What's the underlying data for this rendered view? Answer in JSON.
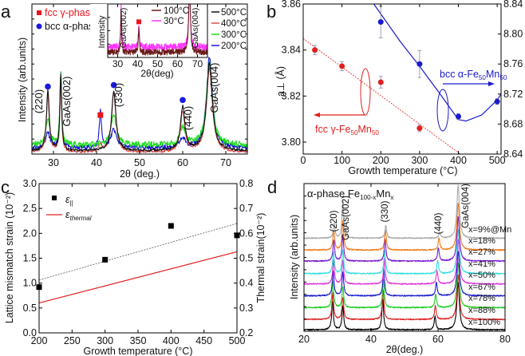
{
  "chart_data": [
    {
      "panel_label": "a",
      "type": "line",
      "xlabel": "2θ (deg.)",
      "ylabel": "Intensity (arb.units)",
      "xlim": [
        25,
        75
      ],
      "ylim": [
        0,
        1
      ],
      "xticks": [
        "30",
        "40",
        "50",
        "60",
        "70"
      ],
      "phase_legend": [
        {
          "label": "fcc γ-phase",
          "color": "#e8141c",
          "marker": "square"
        },
        {
          "label": "bcc α-phase",
          "color": "#1a1adf",
          "marker": "circle"
        }
      ],
      "series": [
        {
          "name": "500°C",
          "color": "#111111",
          "background": 0.02,
          "noise": 0.008,
          "peaks": [
            [
              28.7,
              0.4,
              0.4
            ],
            [
              31.7,
              0.5,
              0.25
            ],
            [
              44.0,
              0.4,
              0.6
            ],
            [
              60.0,
              0.29,
              0.6
            ],
            [
              66.2,
              0.58,
              0.8
            ]
          ]
        },
        {
          "name": "400°C",
          "color": "#dd5050",
          "background": 0.01,
          "noise": 0.008,
          "peaks": [
            [
              28.7,
              0.38,
              0.4
            ],
            [
              31.7,
              0.48,
              0.25
            ],
            [
              40.9,
              0.05,
              0.4
            ],
            [
              44.0,
              0.4,
              0.6
            ],
            [
              60.0,
              0.27,
              0.6
            ],
            [
              66.2,
              0.56,
              0.8
            ]
          ]
        },
        {
          "name": "300°C",
          "color": "#22dd22",
          "background": 0.06,
          "noise": 0.02,
          "peaks": [
            [
              28.7,
              0.17,
              0.5
            ],
            [
              31.7,
              0.48,
              0.25
            ],
            [
              44.0,
              0.2,
              0.7
            ],
            [
              60.0,
              0.12,
              0.7
            ],
            [
              66.2,
              0.55,
              0.8
            ]
          ]
        },
        {
          "name": "200°C",
          "color": "#1414d0",
          "background": 0.04,
          "noise": 0.015,
          "peaks": [
            [
              28.7,
              0.1,
              0.6
            ],
            [
              31.7,
              0.5,
              0.25
            ],
            [
              40.9,
              0.24,
              0.3
            ],
            [
              44.0,
              0.12,
              0.8
            ],
            [
              60.0,
              0.06,
              0.8
            ],
            [
              66.2,
              0.61,
              0.8
            ]
          ]
        }
      ],
      "phase_markers": [
        {
          "phase": "bcc α-phase",
          "x": 28.7,
          "y": 0.45
        },
        {
          "phase": "bcc α-phase",
          "x": 44.0,
          "y": 0.46
        },
        {
          "phase": "bcc α-phase",
          "x": 60.0,
          "y": 0.36
        },
        {
          "phase": "fcc γ-phase",
          "x": 40.9,
          "y": 0.26
        }
      ],
      "peak_labels": [
        "(220)",
        "GaAs(002)",
        "(330)",
        "(440)",
        "GaAs(004)"
      ],
      "inset": {
        "xlabel": "2θ(deg)",
        "ylabel": "Intensity",
        "xlim": [
          25,
          75
        ],
        "ylim": [
          0,
          1
        ],
        "xticks": [
          "30",
          "40",
          "50",
          "60",
          "70"
        ],
        "series": [
          {
            "name": "100°C",
            "color": "#6b1a1a",
            "background": 0.1,
            "noise": 0.06,
            "peaks": [
              [
                31.7,
                0.85,
                0.25
              ],
              [
                40.6,
                0.45,
                0.3
              ],
              [
                66.0,
                1.3,
                0.5
              ]
            ]
          },
          {
            "name": "30°C",
            "color": "#ff33ff",
            "background": 0.2,
            "noise": 0.07,
            "peaks": [
              [
                31.7,
                0.8,
                0.25
              ],
              [
                40.6,
                0.4,
                0.3
              ],
              [
                66.0,
                1.2,
                0.5
              ]
            ]
          }
        ],
        "fcc_marker": {
          "x": 40.6,
          "y": 0.7
        },
        "peak_labels": [
          "GaAs(002)",
          "GaAs(004)"
        ]
      }
    },
    {
      "panel_label": "b",
      "type": "scatter",
      "xlabel": "Growth temperature (°C)",
      "ylabel": "a⊥ (Å)",
      "xlim": [
        0,
        510
      ],
      "ylim_left": [
        3.7948,
        3.86
      ],
      "ylim_right": [
        8.64,
        8.84
      ],
      "xticks": [
        "0",
        "100",
        "200",
        "300",
        "400",
        "500"
      ],
      "yticks_left": [
        "3.80",
        "3.82",
        "3.84",
        "3.86"
      ],
      "yticks_right": [
        "8.64",
        "8.68",
        "8.72",
        "8.76",
        "8.80",
        "8.84"
      ],
      "fcc": {
        "label_prefix": "fcc γ-Fe",
        "sub1": "50",
        "mid": "Mn",
        "sub2": "50",
        "color": "#e02020",
        "axis": "left",
        "points": [
          [
            30,
            3.84,
            0.002
          ],
          [
            100,
            3.833,
            0.002
          ],
          [
            200,
            3.826,
            0.0025
          ],
          [
            300,
            3.806,
            0.0015
          ]
        ],
        "fit": [
          [
            0,
            3.845
          ],
          [
            405,
            3.7948
          ]
        ]
      },
      "bcc": {
        "label_prefix": "bcc α-Fe",
        "sub1": "50",
        "mid": "Mn",
        "sub2": "50",
        "color": "#1a1acc",
        "axis": "right",
        "points": [
          [
            200,
            8.816,
            0.021
          ],
          [
            300,
            8.76,
            0.018
          ],
          [
            400,
            8.69,
            0.004
          ],
          [
            500,
            8.71,
            0.004
          ]
        ],
        "fit": [
          [
            182,
            8.84
          ],
          [
            250,
            8.79
          ],
          [
            300,
            8.757
          ],
          [
            350,
            8.722
          ],
          [
            400,
            8.686
          ],
          [
            420,
            8.684
          ],
          [
            460,
            8.692
          ],
          [
            500,
            8.712
          ],
          [
            510,
            8.72
          ]
        ]
      }
    },
    {
      "panel_label": "c",
      "type": "scatter",
      "xlabel": "Growth temperature (°C)",
      "ylabel_left": "Lattice mismatch strain (10⁻²)",
      "ylabel_right": "Thermal strain(10⁻²)",
      "xlim": [
        200,
        500
      ],
      "ylim_left": [
        0,
        3
      ],
      "ylim_right": [
        0.2,
        0.8
      ],
      "xticks": [
        "200",
        "250",
        "300",
        "350",
        "400",
        "450",
        "500"
      ],
      "yticks_left": [
        "0.0",
        "0.5",
        "1.0",
        "1.5",
        "2.0",
        "2.5",
        "3.0"
      ],
      "yticks_right": [
        "0.2",
        "0.3",
        "0.4",
        "0.5",
        "0.6",
        "0.7",
        "0.8"
      ],
      "legend": {
        "eps": "ε",
        "parallel_sub": "||",
        "thermal_sub": "thermal"
      },
      "lattice_points": [
        [
          200,
          0.92
        ],
        [
          300,
          1.47
        ],
        [
          400,
          2.15
        ],
        [
          500,
          1.96
        ]
      ],
      "lattice_fit": [
        [
          200,
          1.06
        ],
        [
          500,
          2.2
        ]
      ],
      "thermal_line": [
        [
          200,
          0.32
        ],
        [
          500,
          0.526
        ]
      ],
      "thermal_color": "#e02020"
    },
    {
      "panel_label": "d",
      "type": "line",
      "title_prefix": "α-phase Fe",
      "title_sub1": "100-x",
      "title_mid": "Mn",
      "title_sub2": "x",
      "xlabel": "2θ(deg.)",
      "ylabel": "Intensity (arb.units)",
      "xlim": [
        20,
        80
      ],
      "ylim": [
        0,
        10
      ],
      "xticks": [
        "20",
        "40",
        "60",
        "80"
      ],
      "peak_labels": [
        "(220)",
        "GaAs(002)",
        "(330)",
        "(440)",
        "GaAs(004)"
      ],
      "series": [
        {
          "name": "x=100%",
          "color": "#000000",
          "offset": 0.1,
          "peaks": [
            [
              28.5,
              1.9
            ],
            [
              31.6,
              1.6
            ],
            [
              43.5,
              2.1
            ],
            [
              59.1,
              0.9
            ],
            [
              66.0,
              3.2
            ]
          ]
        },
        {
          "name": "x=88%",
          "color": "#dd2222",
          "offset": 0.8,
          "peaks": [
            [
              28.6,
              1.8
            ],
            [
              31.6,
              1.5
            ],
            [
              43.6,
              2.0
            ],
            [
              59.2,
              0.9
            ],
            [
              66.0,
              3.0
            ]
          ]
        },
        {
          "name": "x=78%",
          "color": "#22cc22",
          "offset": 1.6,
          "peaks": [
            [
              28.6,
              1.8
            ],
            [
              31.6,
              1.4
            ],
            [
              43.7,
              1.9
            ],
            [
              59.3,
              0.9
            ],
            [
              66.0,
              3.0
            ]
          ]
        },
        {
          "name": "x=67%",
          "color": "#1a1acc",
          "offset": 2.4,
          "peaks": [
            [
              28.7,
              1.7
            ],
            [
              31.6,
              1.6
            ],
            [
              43.8,
              1.8
            ],
            [
              59.5,
              0.9
            ],
            [
              66.0,
              3.0
            ]
          ]
        },
        {
          "name": "x=50%",
          "color": "#dd33dd",
          "offset": 3.2,
          "peaks": [
            [
              28.8,
              1.6
            ],
            [
              31.6,
              1.6
            ],
            [
              44.0,
              1.7
            ],
            [
              59.7,
              0.9
            ],
            [
              66.0,
              3.0
            ]
          ]
        },
        {
          "name": "x=41%",
          "color": "#33dddd",
          "offset": 3.9,
          "peaks": [
            [
              28.8,
              1.5
            ],
            [
              31.6,
              1.6
            ],
            [
              44.1,
              1.6
            ],
            [
              59.9,
              0.9
            ],
            [
              66.0,
              3.0
            ]
          ]
        },
        {
          "name": "x=27%",
          "color": "#7a1ad0",
          "offset": 4.75,
          "peaks": [
            [
              28.9,
              1.4
            ],
            [
              31.6,
              1.7
            ],
            [
              44.2,
              1.5
            ],
            [
              60.1,
              0.9
            ],
            [
              66.0,
              3.0
            ]
          ]
        },
        {
          "name": "x=18%",
          "color": "#f07a1a",
          "offset": 5.5,
          "peaks": [
            [
              28.9,
              1.3
            ],
            [
              31.6,
              2.0
            ],
            [
              44.3,
              1.4
            ],
            [
              60.3,
              0.8
            ],
            [
              66.0,
              3.2
            ]
          ]
        },
        {
          "name": "x=9%@Mn",
          "color": "#aaaaaa",
          "offset": 6.3,
          "peaks": [
            [
              29.0,
              1.0
            ],
            [
              31.6,
              2.5
            ],
            [
              44.4,
              0.9
            ],
            [
              60.5,
              0.4
            ],
            [
              66.0,
              3.6
            ]
          ]
        }
      ]
    }
  ]
}
